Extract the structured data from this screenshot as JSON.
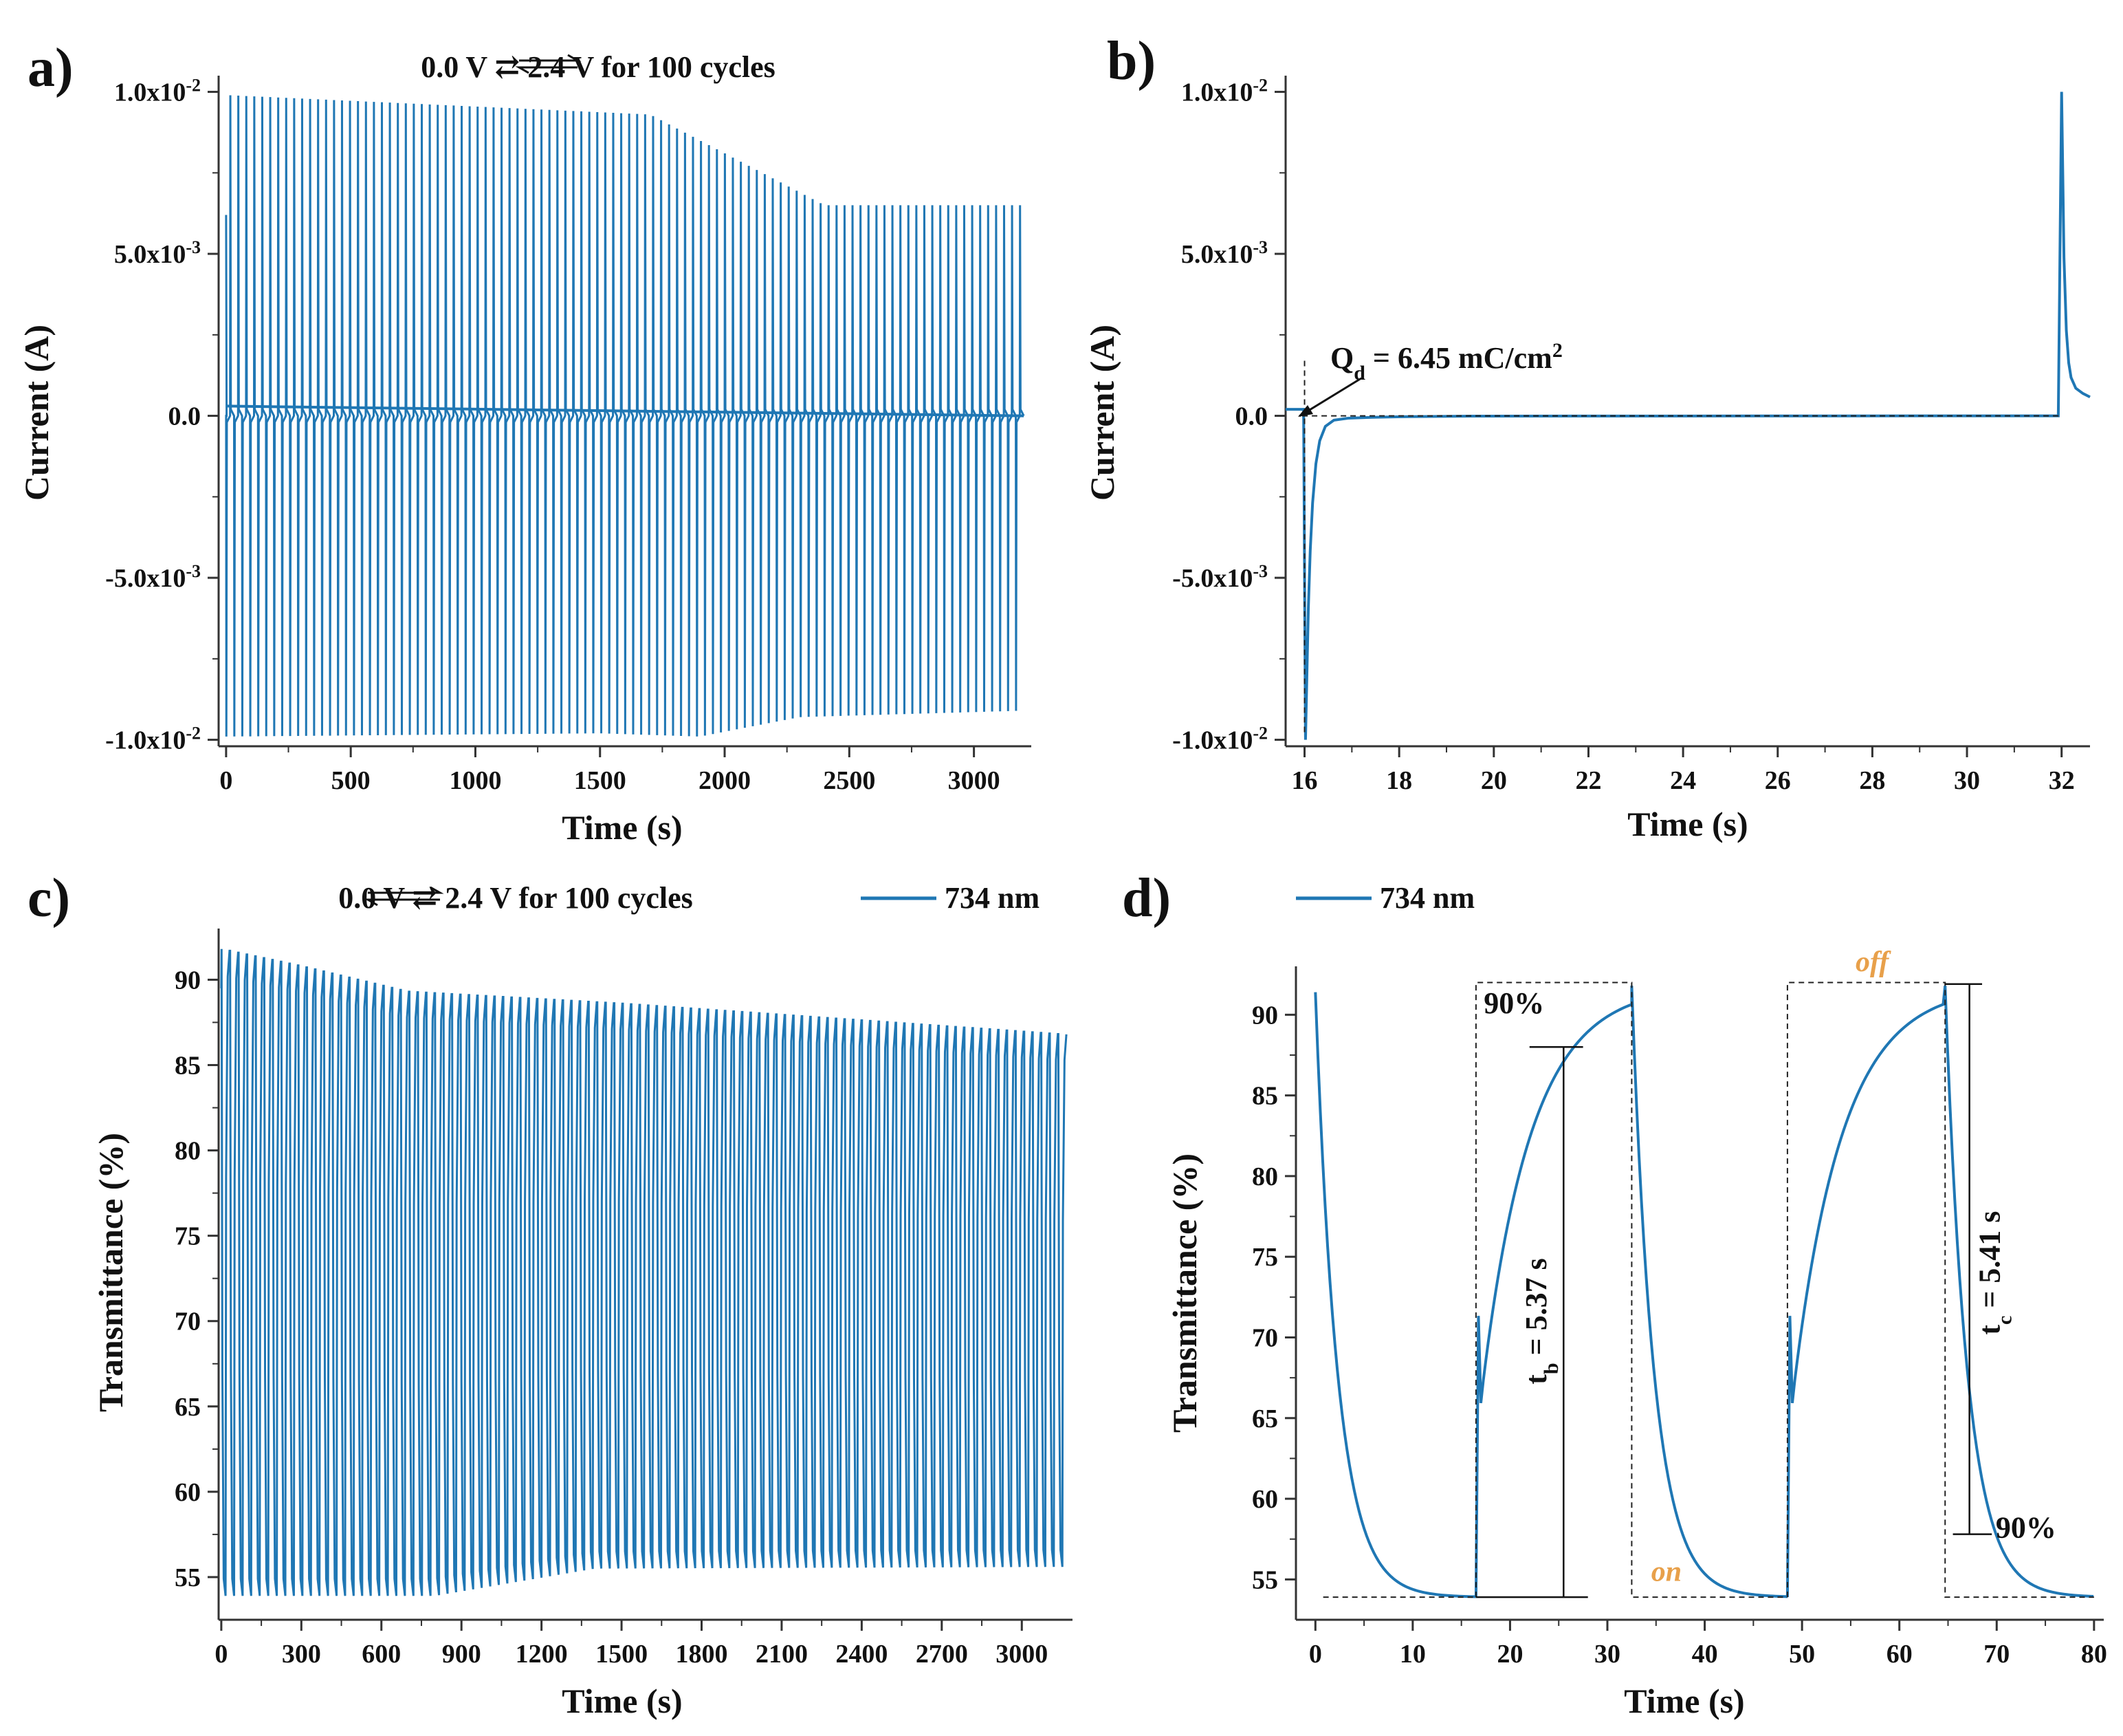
{
  "figure": {
    "series_color": "#1f77b4",
    "accent_color": "#e8a04a",
    "panels": {
      "a": "a)",
      "b": "b)",
      "c": "c)",
      "d": "d)"
    }
  },
  "chart_data": [
    {
      "id": "a",
      "type": "line",
      "panel_label": "a)",
      "title": "0.0 V ⇄ 2.4 V for 100 cycles",
      "xlabel": "Time (s)",
      "ylabel": "Current (A)",
      "xlim": [
        -30,
        3230
      ],
      "ylim": [
        -0.0102,
        0.0105
      ],
      "x_ticks": [
        0,
        500,
        1000,
        1500,
        2000,
        2500,
        3000
      ],
      "y_ticks": [
        {
          "value": 0.01,
          "label": "1.0x10",
          "exp": "-2"
        },
        {
          "value": 0.005,
          "label": "5.0x10",
          "exp": "-3"
        },
        {
          "value": 0.0,
          "label": "0.0",
          "exp": ""
        },
        {
          "value": -0.005,
          "label": "-5.0x10",
          "exp": "-3"
        },
        {
          "value": -0.01,
          "label": "-1.0x10",
          "exp": "-2"
        }
      ],
      "series": [
        {
          "name": "current",
          "cycles": 100,
          "period_s": 32,
          "peak_envelope": {
            "t": [
              0,
              1700,
              2400,
              3200
            ],
            "amp": [
              0.0099,
              0.0093,
              0.0065,
              0.0065
            ]
          },
          "trough_envelope": {
            "t": [
              0,
              1500,
              1900,
              2300,
              3200
            ],
            "amp": [
              -0.0099,
              -0.0098,
              -0.0099,
              -0.0093,
              -0.0091
            ]
          }
        }
      ]
    },
    {
      "id": "b",
      "type": "line",
      "panel_label": "b)",
      "xlabel": "Time (s)",
      "ylabel": "Current (A)",
      "xlim": [
        15.6,
        32.6
      ],
      "ylim": [
        -0.0102,
        0.0105
      ],
      "x_ticks": [
        16,
        18,
        20,
        22,
        24,
        26,
        28,
        30,
        32
      ],
      "y_ticks": [
        {
          "value": 0.01,
          "label": "1.0x10",
          "exp": "-2"
        },
        {
          "value": 0.005,
          "label": "5.0x10",
          "exp": "-3"
        },
        {
          "value": 0.0,
          "label": "0.0",
          "exp": ""
        },
        {
          "value": -0.005,
          "label": "-5.0x10",
          "exp": "-3"
        },
        {
          "value": -0.01,
          "label": "-1.0x10",
          "exp": "-2"
        }
      ],
      "annotation": {
        "text_main": "Q",
        "text_sub": "d",
        "text_rest": " = 6.45 mC/cm",
        "text_sup": "2"
      },
      "series": [
        {
          "name": "current",
          "events": [
            {
              "t": 16.0,
              "peak": -0.01
            },
            {
              "t": 31.95,
              "peak": 0.01
            }
          ]
        }
      ]
    },
    {
      "id": "c",
      "type": "line",
      "panel_label": "c)",
      "title": "0.0 V ⇄ 2.4 V for 100 cycles",
      "legend": "734 nm",
      "xlabel": "Time (s)",
      "ylabel": "Transmittance (%)",
      "xlim": [
        -10,
        3190
      ],
      "ylim": [
        52.5,
        93
      ],
      "x_ticks": [
        0,
        300,
        600,
        900,
        1200,
        1500,
        1800,
        2100,
        2400,
        2700,
        3000
      ],
      "y_ticks": [
        55,
        60,
        65,
        70,
        75,
        80,
        85,
        90
      ],
      "series": [
        {
          "name": "734 nm",
          "cycles": 100,
          "period_s": 32,
          "max_envelope": {
            "t": [
              0,
              300,
              700,
              1500,
              3150
            ],
            "val": [
              91.8,
              90.8,
              89.3,
              88.6,
              86.8
            ]
          },
          "min_envelope": {
            "t": [
              0,
              800,
              1400,
              3150
            ],
            "val": [
              53.9,
              53.9,
              55.5,
              55.6
            ]
          }
        }
      ]
    },
    {
      "id": "d",
      "type": "line",
      "panel_label": "d)",
      "legend": "734 nm",
      "xlabel": "Time (s)",
      "ylabel": "Transmittance (%)",
      "xlim": [
        -2,
        81
      ],
      "ylim": [
        52.5,
        93
      ],
      "x_ticks": [
        0,
        10,
        20,
        30,
        40,
        50,
        60,
        70,
        80
      ],
      "y_ticks": [
        55,
        60,
        65,
        70,
        75,
        80,
        85,
        90
      ],
      "annotations": {
        "p90_top": "90%",
        "p90_bottom": "90%",
        "tb_main": "t",
        "tb_sub": "b",
        "tb_rest": " = 5.37 s",
        "tc_main": "t",
        "tc_sub": "c",
        "tc_rest": " = 5.41 s",
        "on": "on",
        "off": "off"
      },
      "series": [
        {
          "name": "734 nm",
          "t_min": 53.9,
          "t_max": 91.8,
          "switch_times": [
            0,
            16.5,
            32.5,
            48.5,
            64.7,
            80
          ]
        }
      ]
    }
  ]
}
